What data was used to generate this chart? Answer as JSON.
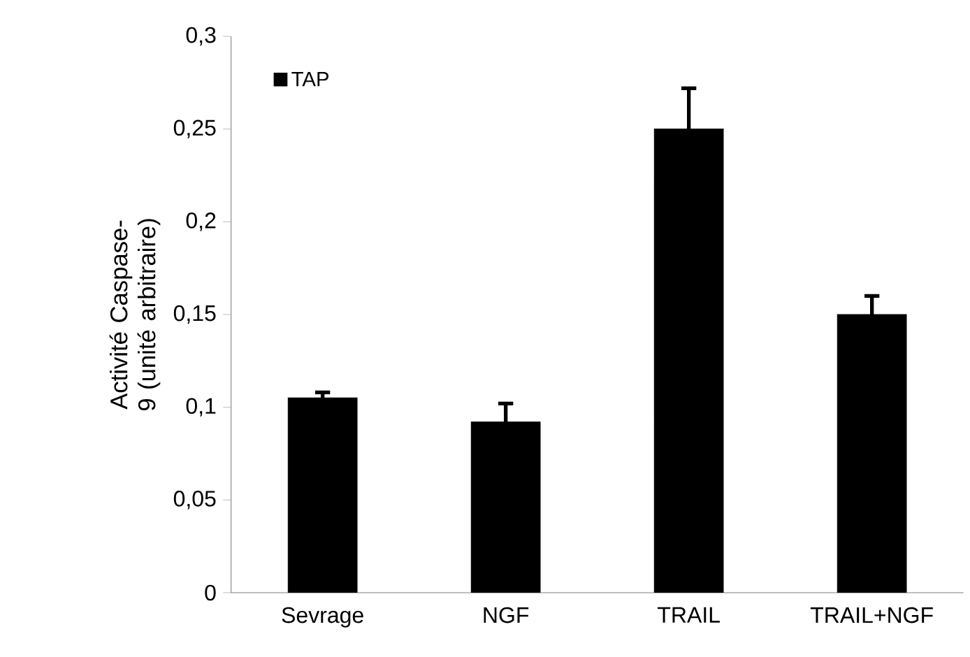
{
  "chart_data": {
    "type": "bar",
    "ylabel": "Activité Caspase-9 (unité arbitraire)",
    "categories": [
      "Sevrage",
      "NGF",
      "TRAIL",
      "TRAIL+NGF"
    ],
    "series": [
      {
        "name": "TAP",
        "color": "#000000",
        "values": [
          0.105,
          0.092,
          0.25,
          0.15
        ],
        "errors": [
          [
            0.105,
            0.108
          ],
          [
            0.092,
            0.102
          ],
          [
            0.25,
            0.272
          ],
          [
            0.15,
            0.16
          ]
        ]
      }
    ],
    "ylim": [
      0,
      0.3
    ],
    "yticks": [
      {
        "value": 0,
        "label": "0"
      },
      {
        "value": 0.05,
        "label": "0,05"
      },
      {
        "value": 0.1,
        "label": "0,1"
      },
      {
        "value": 0.15,
        "label": "0,15"
      },
      {
        "value": 0.2,
        "label": "0,2"
      },
      {
        "value": 0.25,
        "label": "0,25"
      },
      {
        "value": 0.3,
        "label": "0,3"
      }
    ],
    "grid": false,
    "legend": "top left"
  }
}
